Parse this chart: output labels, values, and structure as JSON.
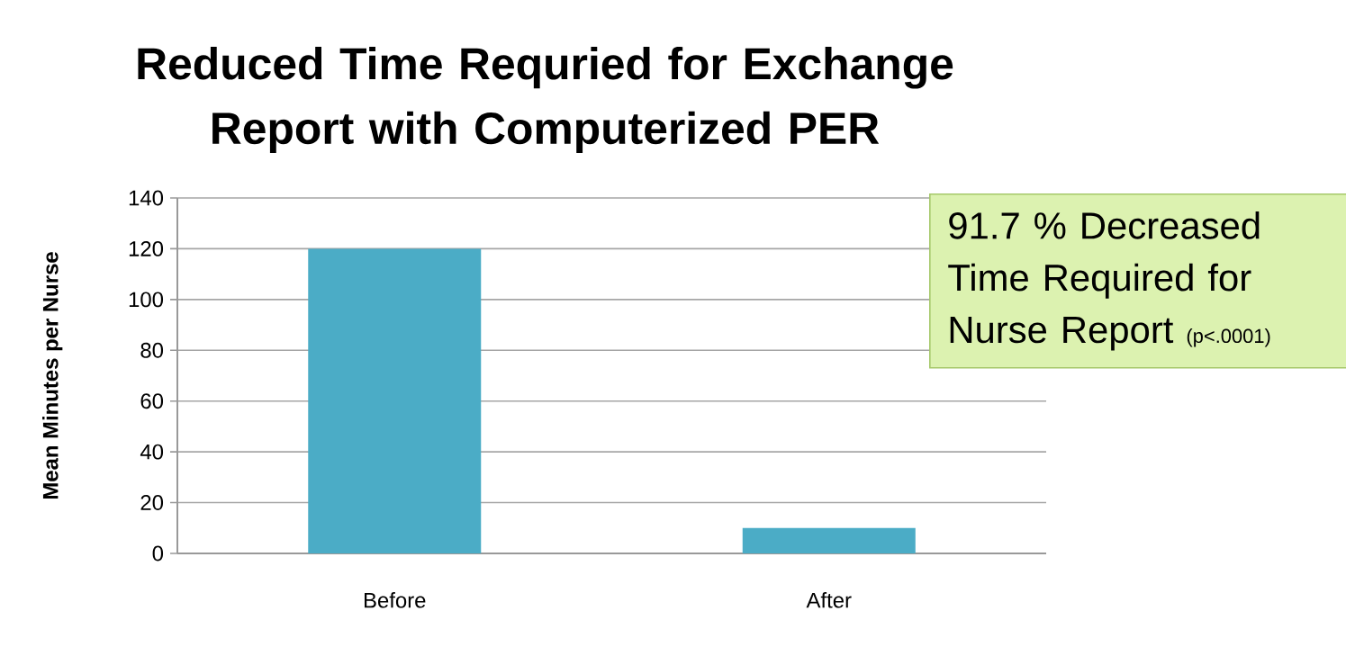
{
  "chart_data": {
    "type": "bar",
    "title": "Reduced Time Requried for Exchange Report with Computerized PER",
    "ylabel": "Mean Minutes per Nurse",
    "categories": [
      "Before",
      "After"
    ],
    "values": [
      120,
      10
    ],
    "color": "#4bacc6",
    "ylim": [
      0,
      140
    ],
    "yticks": [
      0,
      20,
      40,
      60,
      80,
      100,
      120,
      140
    ],
    "grid": "y",
    "annotations": [
      "91.7 % Decreased Time Required for Nurse Report",
      "(p<.0001)"
    ]
  }
}
